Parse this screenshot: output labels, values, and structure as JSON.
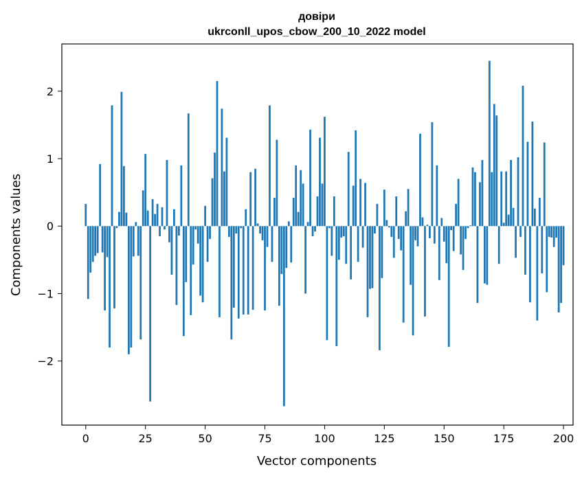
{
  "chart_data": {
    "type": "bar",
    "title": "довіри",
    "subtitle": "ukrconll_upos_cbow_200_10_2022 model",
    "xlabel": "Vector components",
    "ylabel": "Components values",
    "xlim": [
      -10,
      204
    ],
    "ylim": [
      -2.95,
      2.7
    ],
    "xticks": [
      0,
      25,
      50,
      75,
      100,
      125,
      150,
      175,
      200
    ],
    "yticks": [
      -2,
      -1,
      0,
      1,
      2
    ],
    "grid": false,
    "bar_color": "#1f77b4",
    "values": [
      0.33,
      -1.08,
      -0.69,
      -0.53,
      -0.44,
      -0.4,
      0.92,
      -0.39,
      -1.25,
      -0.46,
      -1.8,
      1.79,
      -1.22,
      -0.03,
      0.21,
      1.99,
      0.89,
      0.2,
      -1.9,
      -1.8,
      -0.45,
      0.06,
      -0.44,
      -1.68,
      0.53,
      1.07,
      0.23,
      -2.6,
      0.4,
      0.18,
      0.33,
      -0.15,
      0.28,
      -0.05,
      0.98,
      -0.24,
      -0.72,
      0.25,
      -1.17,
      -0.14,
      0.9,
      -1.63,
      -0.83,
      1.67,
      -1.32,
      -0.57,
      -0.05,
      -0.26,
      -1.03,
      -1.13,
      0.3,
      -0.53,
      -0.19,
      0.71,
      1.09,
      2.15,
      -1.35,
      1.74,
      0.81,
      1.31,
      -0.16,
      -1.68,
      -1.21,
      -0.11,
      -1.37,
      -0.03,
      -1.31,
      0.25,
      -1.31,
      0.8,
      -1.24,
      0.85,
      0.04,
      -0.11,
      -0.21,
      -1.25,
      -0.31,
      1.79,
      -0.53,
      0.42,
      1.28,
      -1.18,
      -0.71,
      -2.67,
      -0.62,
      0.07,
      -0.54,
      0.42,
      0.9,
      0.21,
      0.83,
      0.63,
      -1.0,
      0.06,
      1.43,
      -0.15,
      -0.08,
      0.44,
      1.31,
      0.63,
      1.62,
      -1.69,
      -0.03,
      -0.44,
      0.44,
      -1.78,
      -0.5,
      -0.17,
      -0.15,
      -0.56,
      1.1,
      -0.79,
      0.6,
      1.42,
      -0.53,
      0.7,
      -0.32,
      0.64,
      -1.35,
      -0.93,
      -0.92,
      -0.11,
      0.33,
      -1.84,
      -0.77,
      0.54,
      0.09,
      -0.02,
      -0.16,
      -0.47,
      0.44,
      -0.19,
      -0.36,
      -1.43,
      0.22,
      0.55,
      -0.87,
      -1.62,
      -0.21,
      -0.3,
      1.37,
      0.13,
      -1.34,
      0.02,
      -0.18,
      1.54,
      -0.26,
      0.9,
      -0.8,
      0.12,
      -0.23,
      -0.55,
      -1.79,
      -0.06,
      -0.37,
      0.33,
      0.7,
      -0.42,
      -0.65,
      -0.19,
      -0.03,
      0.01,
      0.87,
      0.8,
      -1.14,
      0.65,
      0.98,
      -0.85,
      -0.87,
      2.45,
      0.8,
      1.81,
      1.64,
      -0.56,
      0.81,
      0.05,
      0.81,
      0.17,
      0.98,
      0.27,
      -0.47,
      1.02,
      -0.16,
      2.08,
      -0.72,
      1.25,
      -1.13,
      1.55,
      0.26,
      -1.4,
      0.42,
      -0.7,
      1.24,
      -0.98,
      -0.16,
      -0.17,
      -0.31,
      -0.17,
      -1.28,
      -1.14,
      -0.58
    ]
  }
}
